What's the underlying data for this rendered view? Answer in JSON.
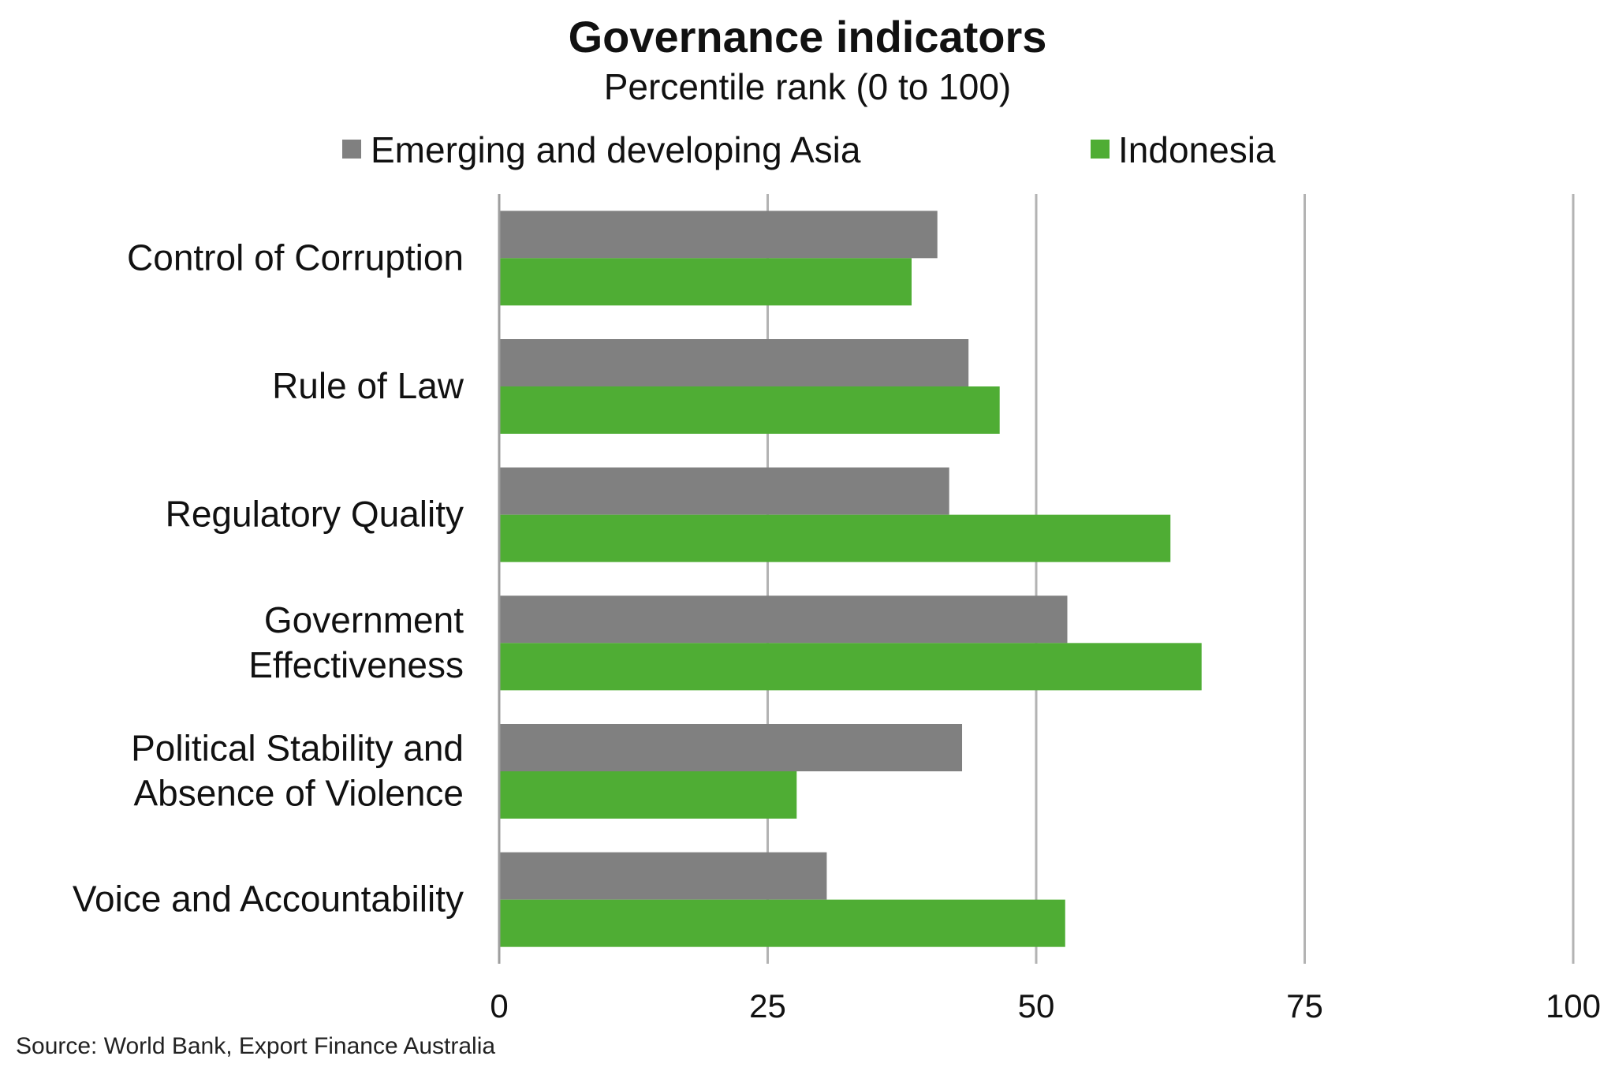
{
  "chart_data": {
    "type": "bar",
    "orientation": "horizontal",
    "title": "Governance indicators",
    "subtitle": "Percentile rank (0 to 100)",
    "categories": [
      [
        "Control of Corruption"
      ],
      [
        "Rule of Law"
      ],
      [
        "Regulatory Quality"
      ],
      [
        "Government",
        "Effectiveness"
      ],
      [
        "Political Stability and",
        "Absence of Violence"
      ],
      [
        "Voice and Accountability"
      ]
    ],
    "series": [
      {
        "name": "Emerging and developing Asia",
        "color": "#808080",
        "values": [
          40.8,
          43.7,
          41.9,
          52.9,
          43.1,
          30.5
        ]
      },
      {
        "name": "Indonesia",
        "color": "#4fad34",
        "values": [
          38.4,
          46.6,
          62.5,
          65.4,
          27.7,
          52.7
        ]
      }
    ],
    "xlim": [
      0,
      100
    ],
    "xticks": [
      "0",
      "25",
      "50",
      "75",
      "100"
    ],
    "grid": "vertical",
    "legend": "top",
    "source": "Source: World Bank, Export Finance Australia"
  }
}
